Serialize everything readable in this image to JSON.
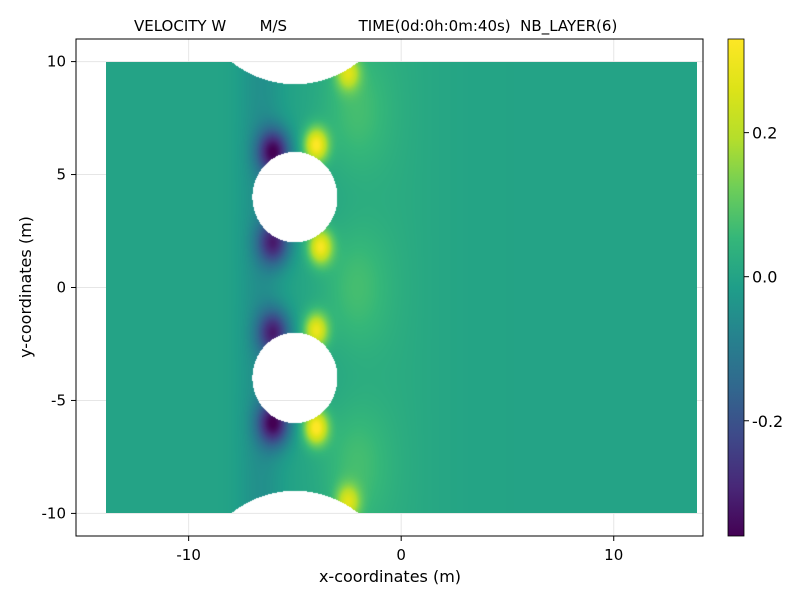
{
  "chart_data": {
    "type": "heatmap",
    "title": "VELOCITY W       M/S               TIME(0d:0h:0m:40s)  NB_LAYER(6)",
    "xlabel": "x-coordinates (m)",
    "ylabel": "y-coordinates (m)",
    "xlim": [
      -15.3,
      14.2
    ],
    "ylim": [
      -11.0,
      11.0
    ],
    "x_ticks": [
      {
        "value": -10,
        "label": "-10"
      },
      {
        "value": 0,
        "label": "0"
      },
      {
        "value": 10,
        "label": "10"
      }
    ],
    "y_ticks": [
      {
        "value": 10,
        "label": "10"
      },
      {
        "value": 5,
        "label": "5"
      },
      {
        "value": 0,
        "label": "0"
      },
      {
        "value": -5,
        "label": "-5"
      },
      {
        "value": -10,
        "label": "-10"
      }
    ],
    "grid": true,
    "domain": {
      "x": [
        -13.9,
        13.9
      ],
      "y": [
        -10,
        10
      ]
    },
    "cylinders": [
      {
        "cx": -5.0,
        "cy": 4.0,
        "radius": 2.0
      },
      {
        "cx": -5.0,
        "cy": -4.0,
        "radius": 2.0
      }
    ],
    "walls": [
      {
        "cx": -5.0,
        "cy": 14.0,
        "radius": 5.0
      },
      {
        "cx": -5.0,
        "cy": -14.0,
        "radius": 5.0
      }
    ],
    "background_value": 0.0,
    "features": [
      {
        "kind": "min",
        "x": -6.0,
        "y": 6.0,
        "value": -0.33
      },
      {
        "kind": "min",
        "x": -6.0,
        "y": 2.0,
        "value": -0.28
      },
      {
        "kind": "min",
        "x": -6.0,
        "y": -2.0,
        "value": -0.28
      },
      {
        "kind": "min",
        "x": -6.0,
        "y": -6.0,
        "value": -0.33
      },
      {
        "kind": "max",
        "x": -4.0,
        "y": 6.3,
        "value": 0.32
      },
      {
        "kind": "max",
        "x": -3.8,
        "y": 1.8,
        "value": 0.3
      },
      {
        "kind": "max",
        "x": -4.0,
        "y": -1.9,
        "value": 0.28
      },
      {
        "kind": "max",
        "x": -4.0,
        "y": -6.2,
        "value": 0.33
      },
      {
        "kind": "max",
        "x": -2.5,
        "y": 9.5,
        "value": 0.22
      },
      {
        "kind": "max",
        "x": -2.5,
        "y": -9.5,
        "value": 0.22
      }
    ],
    "colorbar": {
      "colormap": "viridis",
      "range": [
        -0.36,
        0.33
      ],
      "ticks": [
        {
          "value": 0.2,
          "label": "0.2"
        },
        {
          "value": 0.0,
          "label": "0.0"
        },
        {
          "value": -0.2,
          "label": "-0.2"
        }
      ]
    }
  }
}
